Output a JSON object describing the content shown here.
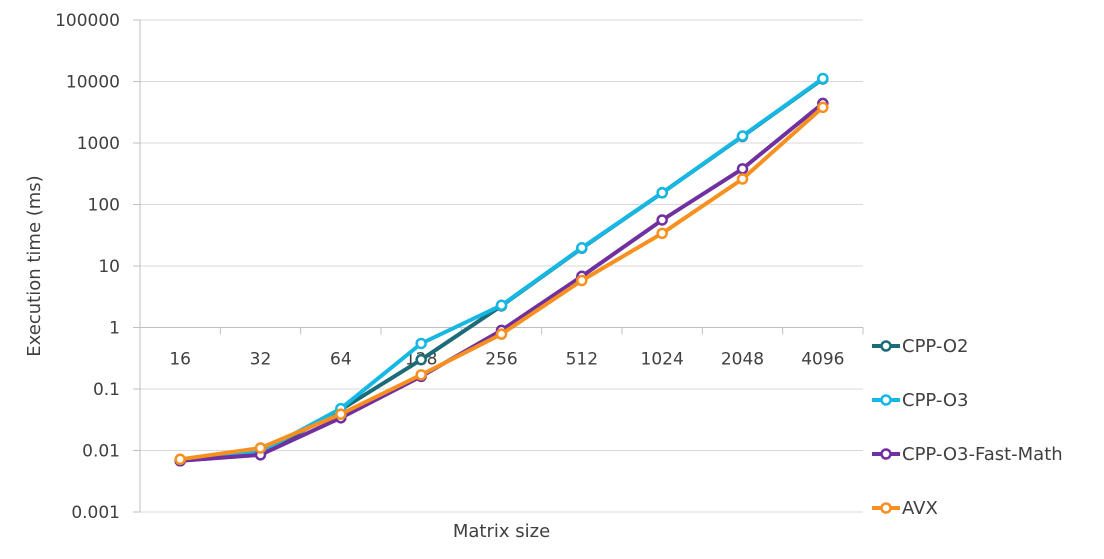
{
  "chart_data": {
    "type": "line",
    "title": "",
    "xlabel": "Matrix size",
    "ylabel": "Execution time (ms)",
    "yscale": "log",
    "ylim": [
      0.001,
      100000
    ],
    "yticks": [
      "0.001",
      "0.01",
      "0.1",
      "1",
      "10",
      "100",
      "1000",
      "10000",
      "100000"
    ],
    "x_axis_crosses_at": 1,
    "categories": [
      "16",
      "32",
      "64",
      "128",
      "256",
      "512",
      "1024",
      "2048",
      "4096"
    ],
    "grid": true,
    "legend_position": "right",
    "series": [
      {
        "name": "CPP-O2",
        "color": "#1b6b78",
        "values": [
          0.0068,
          0.0088,
          0.046,
          0.3,
          2.25,
          19.5,
          155,
          1280,
          11000
        ]
      },
      {
        "name": "CPP-O3",
        "color": "#16b8e3",
        "values": [
          0.0068,
          0.0095,
          0.048,
          0.55,
          2.3,
          19.8,
          155,
          1300,
          11200
        ]
      },
      {
        "name": "CPP-O3-Fast-Math",
        "color": "#7030a0",
        "values": [
          0.0068,
          0.0085,
          0.034,
          0.16,
          0.9,
          6.8,
          56,
          380,
          4400
        ]
      },
      {
        "name": "AVX",
        "color": "#f7901e",
        "values": [
          0.0072,
          0.011,
          0.039,
          0.17,
          0.78,
          5.8,
          34,
          260,
          3800
        ]
      }
    ]
  }
}
